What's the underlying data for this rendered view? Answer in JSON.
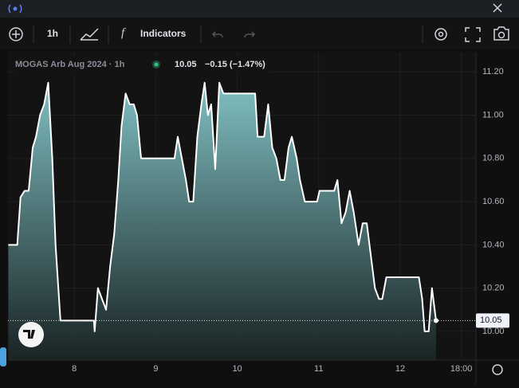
{
  "toolbar": {
    "interval": "1h",
    "indicators": "Indicators"
  },
  "chart_data": {
    "type": "area",
    "legend": {
      "symbol": "MOGAS Arb Aug 2024 · 1h",
      "price": "10.05",
      "change": "−0.15 (−1.47%)"
    },
    "series": [
      {
        "color": "#ffffff",
        "x": [
          7.19,
          7.3,
          7.34,
          7.39,
          7.44,
          7.49,
          7.53,
          7.58,
          7.63,
          7.68,
          7.73,
          7.77,
          7.83,
          8.24,
          8.25,
          8.29,
          8.34,
          8.39,
          8.44,
          8.49,
          8.54,
          8.58,
          8.63,
          8.68,
          8.73,
          8.77,
          8.82,
          9.23,
          9.27,
          9.32,
          9.37,
          9.41,
          9.46,
          9.51,
          9.56,
          9.6,
          9.64,
          9.68,
          9.73,
          9.78,
          9.83,
          10.22,
          10.25,
          10.33,
          10.38,
          10.43,
          10.48,
          10.53,
          10.58,
          10.63,
          10.67,
          10.73,
          10.77,
          10.83,
          10.98,
          11.01,
          11.19,
          11.23,
          11.28,
          11.33,
          11.38,
          11.43,
          11.49,
          11.54,
          11.59,
          11.64,
          11.69,
          11.74,
          11.78,
          11.83,
          12.23,
          12.27,
          12.3,
          12.35,
          12.39,
          12.44
        ],
        "values": [
          10.4,
          10.4,
          10.62,
          10.65,
          10.65,
          10.85,
          10.9,
          11.0,
          11.05,
          11.15,
          10.8,
          10.4,
          10.05,
          10.05,
          10.0,
          10.2,
          10.15,
          10.1,
          10.3,
          10.45,
          10.7,
          10.95,
          11.1,
          11.05,
          11.05,
          11.0,
          10.8,
          10.8,
          10.9,
          10.8,
          10.7,
          10.6,
          10.6,
          10.9,
          11.05,
          11.15,
          11.0,
          11.05,
          10.75,
          11.15,
          11.1,
          11.1,
          10.9,
          10.9,
          11.05,
          10.85,
          10.8,
          10.7,
          10.7,
          10.85,
          10.9,
          10.8,
          10.7,
          10.6,
          10.6,
          10.65,
          10.65,
          10.7,
          10.5,
          10.55,
          10.65,
          10.55,
          10.4,
          10.5,
          10.5,
          10.35,
          10.2,
          10.15,
          10.15,
          10.25,
          10.25,
          10.15,
          10.0,
          10.0,
          10.2,
          10.05
        ]
      }
    ],
    "xlim": [
      7.186,
      12.93
    ],
    "xticks": [
      8,
      9,
      10,
      11,
      12,
      {
        "value": 12.75,
        "label": "18:00"
      }
    ],
    "ylim": [
      9.867,
      11.293
    ],
    "yticks": [
      {
        "value": 10.0,
        "label": "10.00"
      },
      {
        "value": 10.2,
        "label": "10.20"
      },
      {
        "value": 10.4,
        "label": "10.40"
      },
      {
        "value": 10.6,
        "label": "10.60"
      },
      {
        "value": 10.8,
        "label": "10.80"
      },
      {
        "value": 11.0,
        "label": "11.00"
      },
      {
        "value": 11.2,
        "label": "11.20"
      }
    ],
    "grid": true
  }
}
